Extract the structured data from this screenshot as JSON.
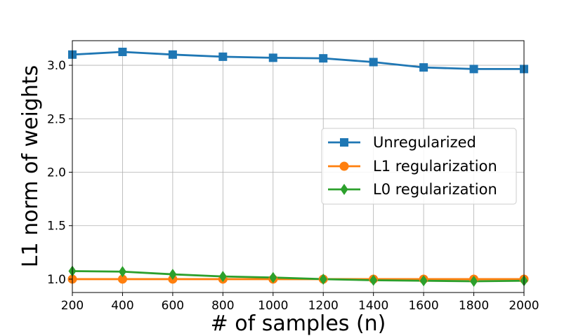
{
  "chart_data": {
    "type": "line",
    "title": "",
    "xlabel": "# of samples (n)",
    "ylabel": "L1 norm of weights",
    "x": [
      200,
      400,
      600,
      800,
      1000,
      1200,
      1400,
      1600,
      1800,
      2000
    ],
    "xlim": [
      200,
      2000
    ],
    "ylim": [
      0.875,
      3.23
    ],
    "xticks": [
      200,
      400,
      600,
      800,
      1000,
      1200,
      1400,
      1600,
      1800,
      2000
    ],
    "xtick_labels": [
      "200",
      "400",
      "600",
      "800",
      "1000",
      "1200",
      "1400",
      "1600",
      "1800",
      "2000"
    ],
    "yticks": [
      1.0,
      1.5,
      2.0,
      2.5,
      3.0
    ],
    "ytick_labels": [
      "1.0",
      "1.5",
      "2.0",
      "2.5",
      "3.0"
    ],
    "grid": true,
    "legend_position": "center-right",
    "series": [
      {
        "name": "Unregularized",
        "color": "#1f77b4",
        "marker": "square",
        "values": [
          3.1,
          3.125,
          3.1,
          3.08,
          3.07,
          3.065,
          3.03,
          2.98,
          2.965,
          2.965
        ]
      },
      {
        "name": "L1 regularization",
        "color": "#ff7f0e",
        "marker": "circle",
        "values": [
          1.0,
          1.0,
          1.0,
          1.0,
          1.0,
          1.0,
          1.0,
          1.0,
          1.0,
          1.0
        ]
      },
      {
        "name": "L0 regularization",
        "color": "#2ca02c",
        "marker": "diamond",
        "values": [
          1.075,
          1.07,
          1.045,
          1.025,
          1.015,
          1.0,
          0.99,
          0.985,
          0.98,
          0.985
        ]
      }
    ]
  }
}
